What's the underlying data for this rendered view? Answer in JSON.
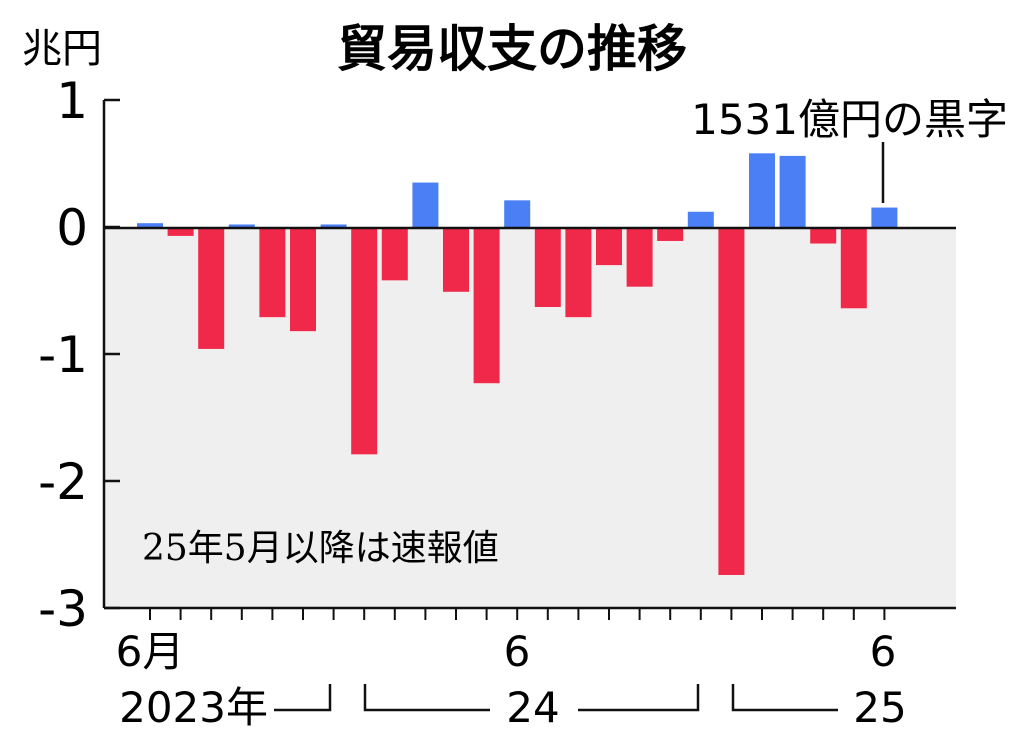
{
  "chart_data": {
    "type": "bar",
    "title": "貿易収支の推移",
    "y_unit": "兆円",
    "ylim": [
      -3,
      1
    ],
    "y_ticks": [
      "1",
      "0",
      "-1",
      "-2",
      "-3"
    ],
    "x_tick_labels": [
      "6月",
      "6",
      "6"
    ],
    "year_labels": [
      "2023年",
      "24",
      "25"
    ],
    "annotation": "1531億円の黒字",
    "note": "25年5月以降は速報値",
    "grid": false,
    "colors": {
      "positive": "#4a7ff5",
      "negative": "#f0294b",
      "negative_area": "#efefef"
    },
    "periods": [
      "2023-06",
      "2023-07",
      "2023-08",
      "2023-09",
      "2023-10",
      "2023-11",
      "2023-12",
      "2024-01",
      "2024-02",
      "2024-03",
      "2024-04",
      "2024-05",
      "2024-06",
      "2024-07",
      "2024-08",
      "2024-09",
      "2024-10",
      "2024-11",
      "2024-12",
      "2025-01",
      "2025-02",
      "2025-03",
      "2025-04",
      "2025-05",
      "2025-06"
    ],
    "values": [
      0.03,
      -0.07,
      -0.96,
      0.02,
      -0.71,
      -0.82,
      0.02,
      -1.79,
      -0.42,
      0.35,
      -0.51,
      -1.23,
      0.21,
      -0.63,
      -0.71,
      -0.3,
      -0.47,
      -0.11,
      0.12,
      -2.74,
      0.58,
      0.56,
      -0.13,
      -0.64,
      0.1531
    ]
  }
}
